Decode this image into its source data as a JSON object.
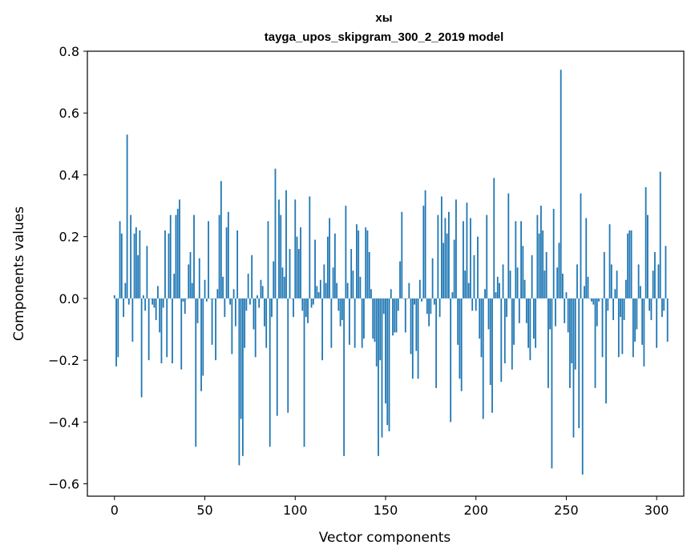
{
  "chart_data": {
    "type": "bar",
    "title": "хы",
    "subtitle": "tayga_upos_skipgram_300_2_2019 model",
    "xlabel": "Vector components",
    "ylabel": "Components values",
    "xlim": [
      -15,
      315
    ],
    "ylim": [
      -0.64,
      0.8
    ],
    "xticks": [
      0,
      50,
      100,
      150,
      200,
      250,
      300
    ],
    "yticks": [
      -0.6,
      -0.4,
      -0.2,
      0.0,
      0.2,
      0.4,
      0.6,
      0.8
    ],
    "ytick_labels": [
      "−0.6",
      "−0.4",
      "−0.2",
      "0.0",
      "0.2",
      "0.4",
      "0.6",
      "0.8"
    ],
    "bar_color": "#1f77b4",
    "values": [
      0.01,
      -0.22,
      -0.19,
      0.25,
      0.21,
      -0.06,
      0.05,
      0.53,
      -0.02,
      0.27,
      -0.14,
      0.21,
      0.23,
      0.14,
      0.22,
      -0.32,
      0.01,
      -0.04,
      0.17,
      -0.2,
      0.0,
      -0.02,
      -0.03,
      -0.07,
      0.04,
      -0.11,
      -0.21,
      -0.03,
      0.22,
      -0.19,
      0.21,
      0.27,
      -0.21,
      0.08,
      0.27,
      0.29,
      0.32,
      -0.23,
      -0.01,
      -0.05,
      0.0,
      0.11,
      0.15,
      0.05,
      0.27,
      -0.48,
      -0.08,
      0.13,
      -0.3,
      -0.25,
      0.06,
      -0.01,
      0.25,
      0.0,
      -0.15,
      0.0,
      -0.2,
      0.03,
      0.27,
      0.38,
      0.07,
      -0.06,
      0.23,
      0.28,
      -0.02,
      -0.18,
      0.03,
      -0.09,
      0.22,
      -0.54,
      -0.39,
      -0.51,
      -0.16,
      -0.04,
      0.08,
      -0.02,
      0.14,
      -0.1,
      -0.19,
      0.01,
      -0.03,
      0.06,
      0.04,
      -0.09,
      -0.16,
      0.25,
      -0.48,
      -0.06,
      0.12,
      0.42,
      -0.38,
      0.32,
      0.27,
      0.1,
      0.07,
      0.35,
      -0.37,
      0.16,
      0.0,
      -0.06,
      0.32,
      0.2,
      0.16,
      0.23,
      -0.04,
      -0.48,
      -0.06,
      -0.08,
      0.33,
      -0.03,
      -0.02,
      0.19,
      0.04,
      0.02,
      0.06,
      -0.2,
      0.11,
      0.05,
      0.2,
      0.26,
      -0.16,
      0.1,
      0.21,
      0.05,
      -0.04,
      -0.09,
      -0.07,
      -0.51,
      0.3,
      0.05,
      -0.15,
      0.16,
      0.09,
      -0.16,
      0.24,
      0.22,
      0.07,
      -0.16,
      -0.13,
      0.23,
      0.22,
      0.15,
      0.03,
      -0.13,
      -0.14,
      -0.22,
      -0.51,
      -0.2,
      -0.45,
      -0.05,
      -0.34,
      -0.41,
      -0.43,
      0.03,
      -0.12,
      -0.11,
      -0.11,
      -0.04,
      0.12,
      0.28,
      0.0,
      -0.11,
      0.0,
      0.05,
      -0.18,
      -0.26,
      -0.02,
      -0.17,
      -0.26,
      0.06,
      -0.01,
      0.3,
      0.35,
      -0.05,
      -0.09,
      -0.05,
      0.13,
      -0.02,
      -0.29,
      0.27,
      -0.06,
      0.33,
      0.18,
      0.26,
      0.21,
      0.28,
      -0.4,
      0.02,
      0.19,
      0.32,
      -0.15,
      -0.26,
      -0.3,
      0.25,
      0.09,
      0.31,
      0.05,
      0.26,
      -0.04,
      0.14,
      -0.04,
      0.2,
      -0.13,
      -0.19,
      -0.39,
      0.03,
      0.27,
      -0.1,
      -0.28,
      -0.37,
      0.39,
      0.02,
      0.07,
      0.05,
      -0.27,
      0.11,
      -0.21,
      -0.06,
      0.34,
      0.09,
      -0.23,
      -0.15,
      0.25,
      0.1,
      -0.08,
      0.25,
      0.17,
      0.06,
      -0.08,
      -0.16,
      -0.2,
      0.14,
      -0.13,
      -0.16,
      0.27,
      0.21,
      0.3,
      0.22,
      0.09,
      0.15,
      -0.29,
      -0.1,
      -0.55,
      0.29,
      -0.09,
      0.1,
      0.18,
      0.74,
      0.08,
      -0.08,
      0.02,
      -0.11,
      -0.29,
      -0.21,
      -0.45,
      -0.23,
      0.11,
      -0.42,
      0.34,
      -0.57,
      0.04,
      0.26,
      0.07,
      0.0,
      -0.01,
      -0.02,
      -0.29,
      -0.09,
      -0.01,
      0.0,
      -0.19,
      0.15,
      -0.34,
      -0.04,
      0.24,
      0.11,
      -0.07,
      0.03,
      0.09,
      -0.19,
      -0.06,
      -0.18,
      -0.07,
      0.06,
      0.21,
      0.22,
      0.22,
      -0.19,
      -0.14,
      -0.1,
      0.11,
      0.04,
      -0.15,
      -0.22,
      0.36,
      0.27,
      -0.04,
      -0.07,
      0.09,
      0.15,
      -0.16,
      0.11,
      0.41,
      -0.06,
      -0.04,
      0.17,
      -0.14
    ]
  }
}
